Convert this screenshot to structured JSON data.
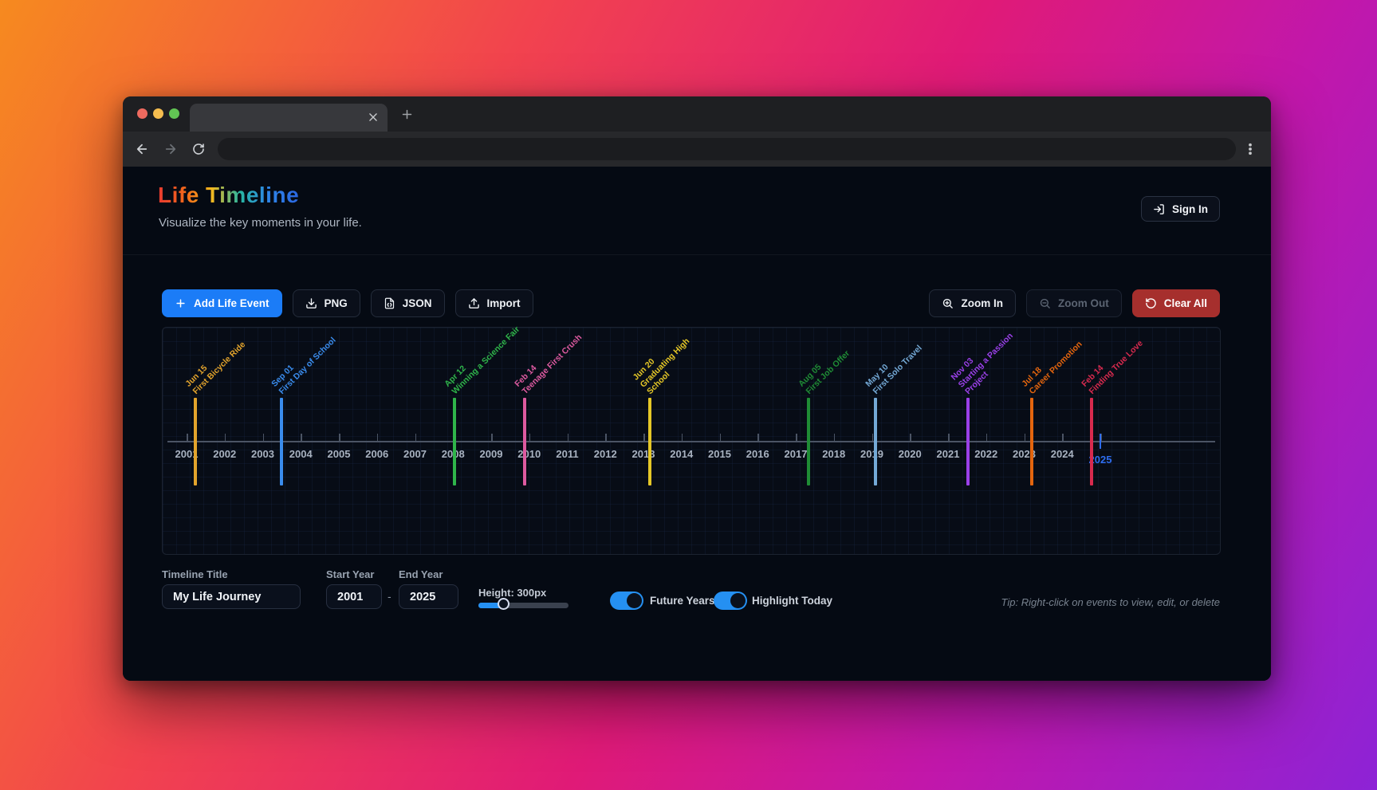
{
  "browser": {
    "traffic_light_colors": [
      "#ee6a5f",
      "#f5bd4f",
      "#62c554"
    ]
  },
  "header": {
    "logo_text": "Life Timeline",
    "logo_colors": [
      "#e93a30",
      "#f2691a",
      "#f6b81d",
      "#27b6a0",
      "#2e86e8",
      "#2b66e0"
    ],
    "subtitle": "Visualize the key moments in your life.",
    "sign_in_label": "Sign In"
  },
  "toolbar": {
    "add_event_label": "Add Life Event",
    "png_label": "PNG",
    "json_label": "JSON",
    "import_label": "Import",
    "zoom_in_label": "Zoom In",
    "zoom_out_label": "Zoom Out",
    "clear_all_label": "Clear All"
  },
  "chart_data": {
    "type": "timeline",
    "start_year": 2001,
    "end_year": 2025,
    "highlighted_year": 2025,
    "highlight_color": "#2e6df0",
    "axis_color": "#4b5464",
    "grid": true,
    "events": [
      {
        "date": "Jun 15",
        "title": "First Bicycle Ride",
        "label_lines": [
          "Jun 15",
          "First Bicycle Ride"
        ],
        "color": "#e3a42c",
        "year_position": 2001.23
      },
      {
        "date": "Sep 01",
        "title": "First Day of School",
        "label_lines": [
          "Sep 01",
          "First Day of School"
        ],
        "color": "#3a8ced",
        "year_position": 2003.49
      },
      {
        "date": "Apr 12",
        "title": "Winning a Science Fair",
        "label_lines": [
          "Apr 12",
          "Winning a Science Fair"
        ],
        "color": "#2fb54a",
        "year_position": 2008.03
      },
      {
        "date": "Feb 14",
        "title": "Teenage First Crush",
        "label_lines": [
          "Feb 14",
          "Teenage First Crush"
        ],
        "color": "#dd5aa0",
        "year_position": 2009.88
      },
      {
        "date": "Jun 20",
        "title": "Graduating High School",
        "label_lines": [
          "Jun 20",
          "Graduating High",
          "School"
        ],
        "color": "#e5c727",
        "year_position": 2013.16
      },
      {
        "date": "Aug 05",
        "title": "First Job Offer",
        "label_lines": [
          "Aug 05",
          "First Job Offer"
        ],
        "color": "#1f8c35",
        "year_position": 2017.33
      },
      {
        "date": "May 10",
        "title": "First Solo Travel",
        "label_lines": [
          "May 10",
          "First Solo Travel"
        ],
        "color": "#74a9d6",
        "year_position": 2019.09
      },
      {
        "date": "Nov 03",
        "title": "Starting a Passion Project",
        "label_lines": [
          "Nov 03",
          "Starting a Passion",
          "Project"
        ],
        "color": "#9a40e8",
        "year_position": 2021.52
      },
      {
        "date": "Jul 18",
        "title": "Career Promotion",
        "label_lines": [
          "Jul 18",
          "Career Promotion"
        ],
        "color": "#e4650e",
        "year_position": 2023.2
      },
      {
        "date": "Feb 14",
        "title": "Finding True Love",
        "label_lines": [
          "Feb 14",
          "Finding True Love"
        ],
        "color": "#d82a4e",
        "year_position": 2024.77
      }
    ]
  },
  "controls": {
    "timeline_title_label": "Timeline Title",
    "timeline_title_value": "My Life Journey",
    "start_year_label": "Start Year",
    "start_year_value": "2001",
    "separator": "-",
    "end_year_label": "End Year",
    "end_year_value": "2025",
    "height_label": "Height: 300px",
    "height_percent": 27,
    "future_years_label": "Future Years",
    "future_years_on": true,
    "highlight_today_label": "Highlight Today",
    "highlight_today_on": true,
    "tip": "Tip: Right-click on events to view, edit, or delete"
  },
  "colors": {
    "accent_blue": "#1b7cf7",
    "danger_red": "#a62f2d",
    "toggle_blue": "#2590f2",
    "page_background": "#050a13"
  }
}
